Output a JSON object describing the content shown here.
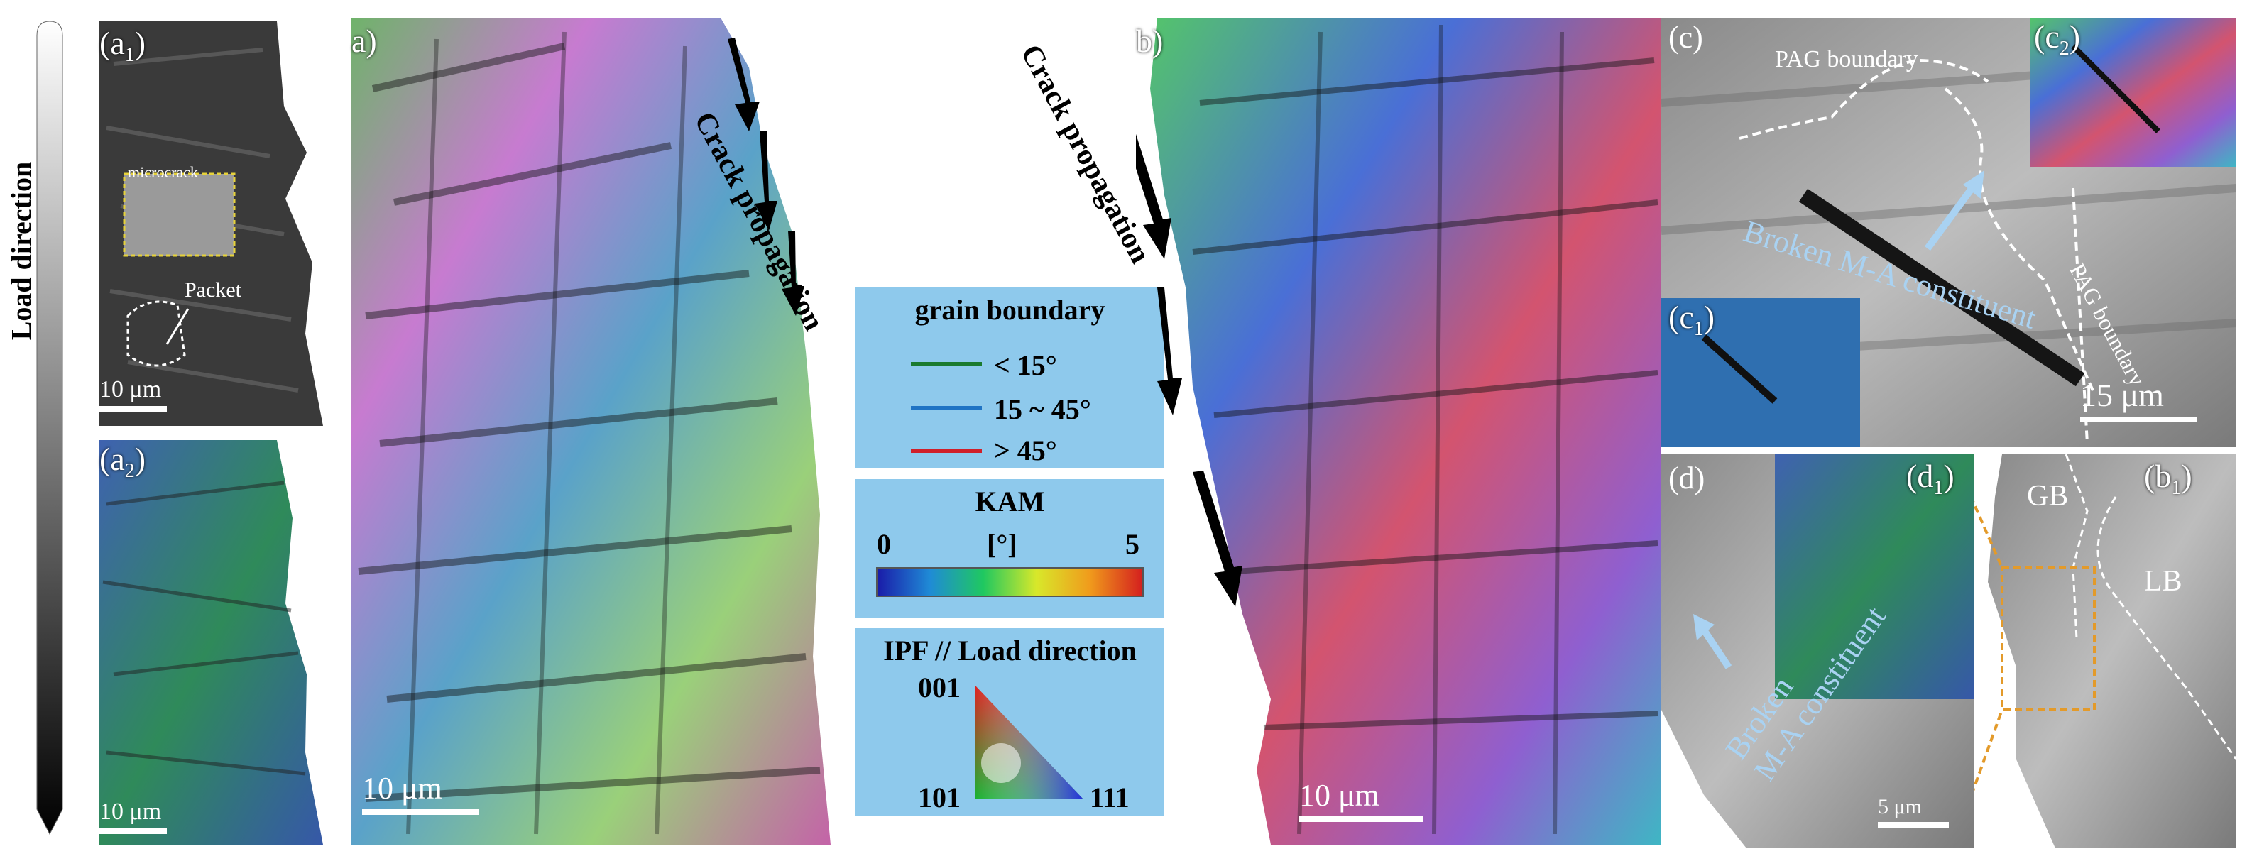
{
  "figure": {
    "load_direction_label": "Load direction",
    "crack_propagation_label_left": "Crack propagation",
    "crack_propagation_label_right": "Crack propagation"
  },
  "panels": {
    "a1": {
      "label": "a",
      "sub": "1",
      "microcrack": "microcrack",
      "packet": "Packet",
      "scale": "10 μm"
    },
    "a2": {
      "label": "a",
      "sub": "2",
      "scale": "10 μm"
    },
    "a": {
      "label": "a)",
      "scale": "10 μm"
    },
    "b": {
      "label": "b)",
      "scale": "10 μm"
    },
    "c": {
      "label": "(c)",
      "pag1": "PAG boundary",
      "pag2": "PAG boundary",
      "broken": "Broken M-A constituent",
      "scale": "15 μm"
    },
    "c1": {
      "label": "c",
      "sub": "1"
    },
    "c2": {
      "label": "c",
      "sub": "2"
    },
    "d": {
      "label": "(d)",
      "broken_line1": "Broken",
      "broken_line2": "M-A constituent",
      "scale": "5 μm"
    },
    "d1": {
      "label": "d",
      "sub": "1"
    },
    "b1": {
      "label": "b",
      "sub": "1",
      "gb": "GB",
      "lb": "LB"
    }
  },
  "legend": {
    "grain_boundary": {
      "title": "grain boundary",
      "items": [
        {
          "label": "< 15°",
          "color": "#1a7a2e"
        },
        {
          "label": "15 ~ 45°",
          "color": "#1f73c4"
        },
        {
          "label": "> 45°",
          "color": "#d0202a"
        }
      ]
    },
    "kam": {
      "title": "KAM",
      "min": "0",
      "unit": "[°]",
      "max": "5"
    },
    "ipf": {
      "title": "IPF // Load direction",
      "v001": "001",
      "v101": "101",
      "v111": "111"
    }
  },
  "colors": {
    "legend_bg": "#8ec9ec",
    "annotation_blue": "#a9d2f2",
    "orange_box": "#e39a2a"
  }
}
